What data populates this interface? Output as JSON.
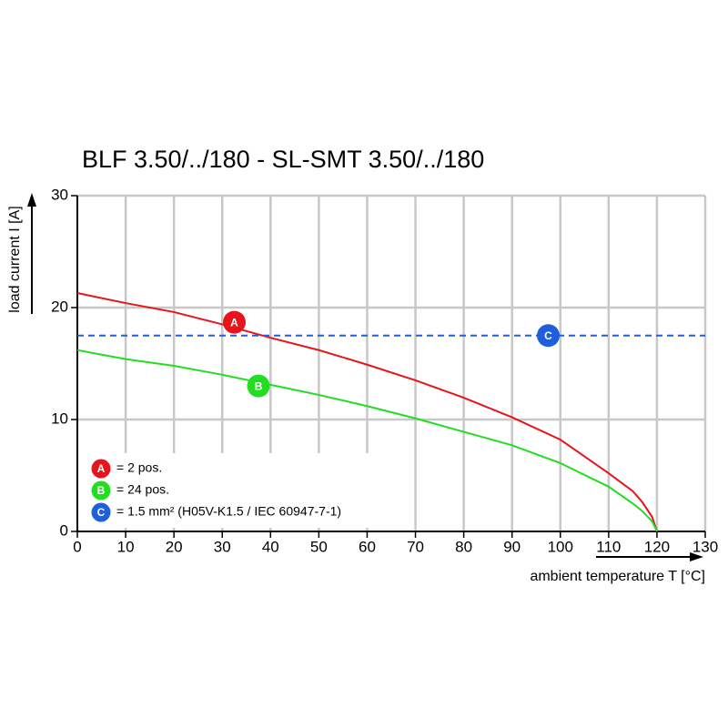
{
  "chart_data": {
    "type": "line",
    "title": "BLF 3.50/../180 - SL-SMT 3.50/../180",
    "x_label": "ambient temperature T [°C]",
    "y_label": "load current I [A]",
    "xlim": [
      0,
      130
    ],
    "ylim": [
      0,
      30
    ],
    "xticks": [
      0,
      10,
      20,
      30,
      40,
      50,
      60,
      70,
      80,
      90,
      100,
      110,
      120,
      130
    ],
    "yticks": [
      0,
      10,
      20,
      30
    ],
    "grid": true,
    "series": [
      {
        "name": "= 2 pos.",
        "marker": "A",
        "color": "#e8141b",
        "dashed": false,
        "x": [
          0,
          10,
          20,
          30,
          40,
          50,
          60,
          70,
          80,
          90,
          100,
          110,
          115,
          117,
          119,
          120
        ],
        "values": [
          21.3,
          20.4,
          19.6,
          18.5,
          17.3,
          16.2,
          14.9,
          13.5,
          11.95,
          10.2,
          8.2,
          5.2,
          3.6,
          2.6,
          1.3,
          0
        ]
      },
      {
        "name": "= 24 pos.",
        "marker": "B",
        "color": "#22dd22",
        "dashed": false,
        "x": [
          0,
          10,
          20,
          30,
          40,
          50,
          60,
          70,
          80,
          90,
          100,
          110,
          115,
          117,
          119,
          120
        ],
        "values": [
          16.2,
          15.4,
          14.8,
          14.0,
          13.1,
          12.2,
          11.2,
          10.1,
          8.9,
          7.7,
          6.1,
          4.0,
          2.5,
          1.8,
          0.9,
          0
        ]
      },
      {
        "name": "= 1.5 mm² (H05V-K1.5 / IEC 60947-7-1)",
        "marker": "C",
        "color": "#1e5fe0",
        "dashed": true,
        "x": [
          0,
          130
        ],
        "values": [
          17.5,
          17.5
        ]
      }
    ]
  }
}
